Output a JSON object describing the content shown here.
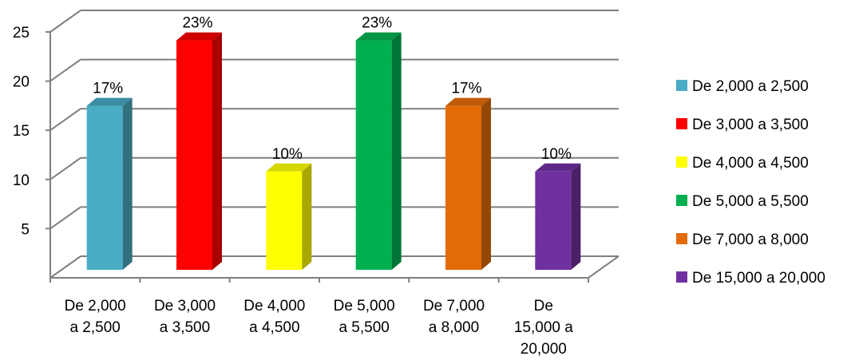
{
  "chart_data": {
    "type": "bar",
    "categories": [
      [
        "De 2,000",
        "a 2,500"
      ],
      [
        "De 3,000",
        "a 3,500"
      ],
      [
        "De 4,000",
        "a 4,500"
      ],
      [
        "De 5,000",
        "a 5,500"
      ],
      [
        "De 7,000",
        "a 8,000"
      ],
      [
        "De",
        "15,000 a",
        "20,000"
      ]
    ],
    "values": [
      16.67,
      23.33,
      10,
      23.33,
      16.67,
      10
    ],
    "data_labels": [
      "17%",
      "23%",
      "10%",
      "23%",
      "17%",
      "10%"
    ],
    "ylim": [
      0,
      25
    ],
    "yticks": [
      5,
      10,
      15,
      20,
      25
    ],
    "grid": true,
    "legend_position": "right",
    "legend": [
      "De 2,000 a 2,500",
      "De 3,000 a 3,500",
      "De 4,000 a 4,500",
      "De 5,000 a 5,500",
      "De 7,000 a 8,000",
      "De 15,000 a 20,000"
    ],
    "colors": [
      {
        "front": "#4BACC6",
        "side": "#31707F",
        "top": "#3B8DA3"
      },
      {
        "front": "#FF0000",
        "side": "#A80000",
        "top": "#D00000"
      },
      {
        "front": "#FFFF00",
        "side": "#A8A800",
        "top": "#D6D600"
      },
      {
        "front": "#00B050",
        "side": "#007434",
        "top": "#009443"
      },
      {
        "front": "#E36C09",
        "side": "#954706",
        "top": "#C05A07"
      },
      {
        "front": "#7030A0",
        "side": "#4A2069",
        "top": "#5E2887"
      }
    ],
    "gridline_color": "#7F7F7F"
  }
}
